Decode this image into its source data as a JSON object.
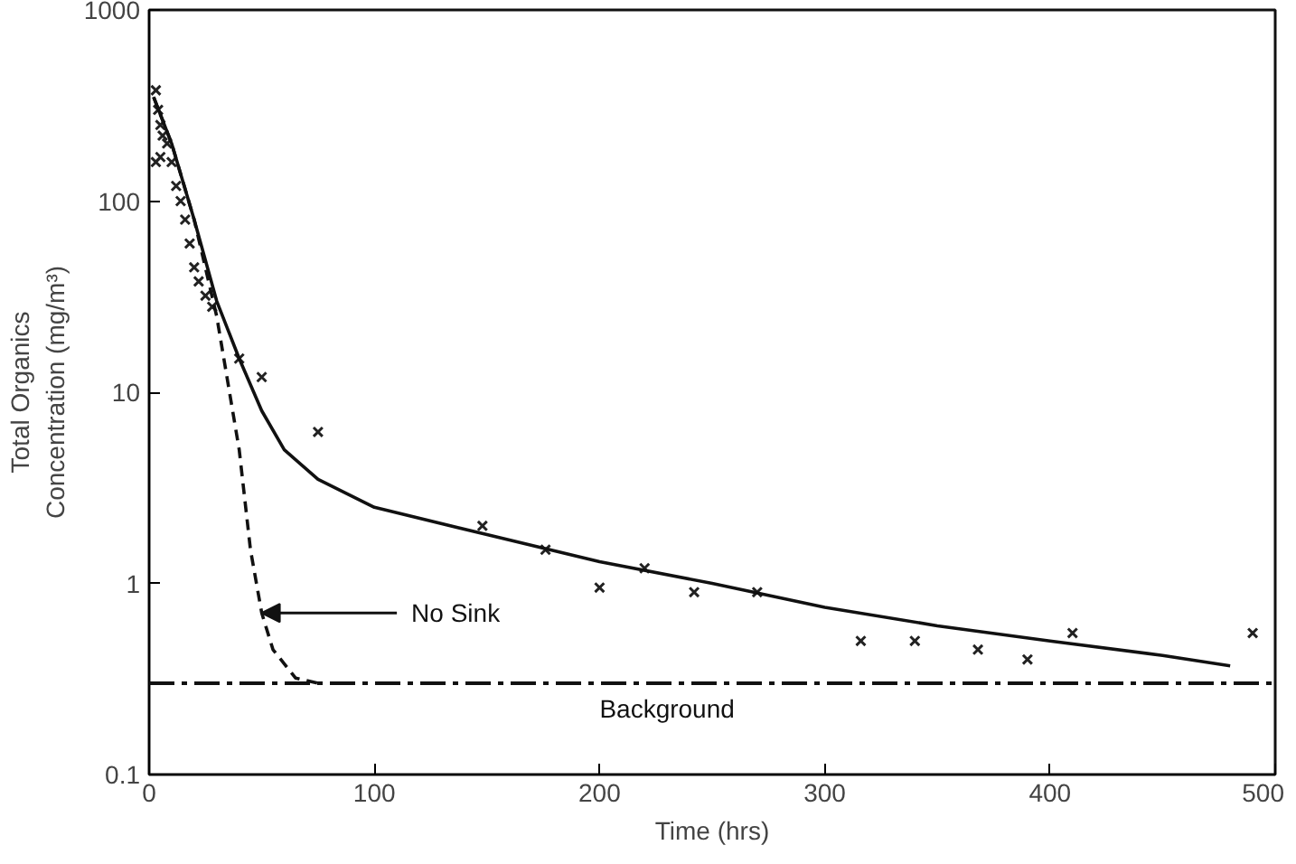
{
  "chart_data": {
    "type": "scatter",
    "xlabel": "Time (hrs)",
    "ylabel": "Total Organics\nConcentration (mg/m³)",
    "log": "y",
    "grid": false,
    "xlim": [
      0,
      500
    ],
    "xticks": [
      0,
      100,
      200,
      300,
      400,
      500
    ],
    "ylim": [
      0.1,
      1000
    ],
    "yticks": [
      0.1,
      1,
      10,
      100,
      1000
    ],
    "series": [
      {
        "marker": "cross",
        "color": "#222222",
        "x": [
          3,
          4,
          5,
          6,
          3,
          5,
          8,
          10,
          12,
          14,
          16,
          18,
          20,
          22,
          25,
          28,
          40,
          50,
          75,
          148,
          176,
          200,
          220,
          242,
          270,
          316,
          340,
          368,
          390,
          410,
          490
        ],
        "values": [
          380,
          300,
          250,
          220,
          160,
          170,
          200,
          160,
          120,
          100,
          80,
          60,
          45,
          38,
          32,
          28,
          15,
          12,
          6.2,
          2.0,
          1.5,
          0.95,
          1.2,
          0.9,
          0.9,
          0.5,
          0.5,
          0.45,
          0.4,
          0.55,
          0.55
        ]
      },
      {
        "type": "line",
        "marker": "none",
        "line_style": "solid",
        "color": "#111111",
        "x": [
          2,
          10,
          20,
          30,
          40,
          50,
          60,
          75,
          100,
          150,
          200,
          250,
          300,
          350,
          400,
          450,
          480
        ],
        "values": [
          350,
          200,
          80,
          30,
          15,
          8,
          5,
          3.5,
          2.5,
          1.8,
          1.3,
          1.0,
          0.75,
          0.6,
          0.5,
          0.42,
          0.37
        ]
      },
      {
        "type": "line",
        "marker": "none",
        "line_style": "dashed",
        "color": "#111111",
        "x": [
          2,
          10,
          20,
          30,
          40,
          45,
          50,
          55,
          65,
          75
        ],
        "values": [
          350,
          200,
          80,
          25,
          5,
          1.5,
          0.7,
          0.45,
          0.32,
          0.3
        ]
      }
    ],
    "ref_lines": [
      {
        "axis": "y",
        "value": 0.3,
        "label": "Background",
        "color": "#111111",
        "line_style": "dashdot"
      }
    ],
    "annotations": [
      {
        "text": "No Sink",
        "x": 50,
        "y": 0.7
      }
    ]
  }
}
